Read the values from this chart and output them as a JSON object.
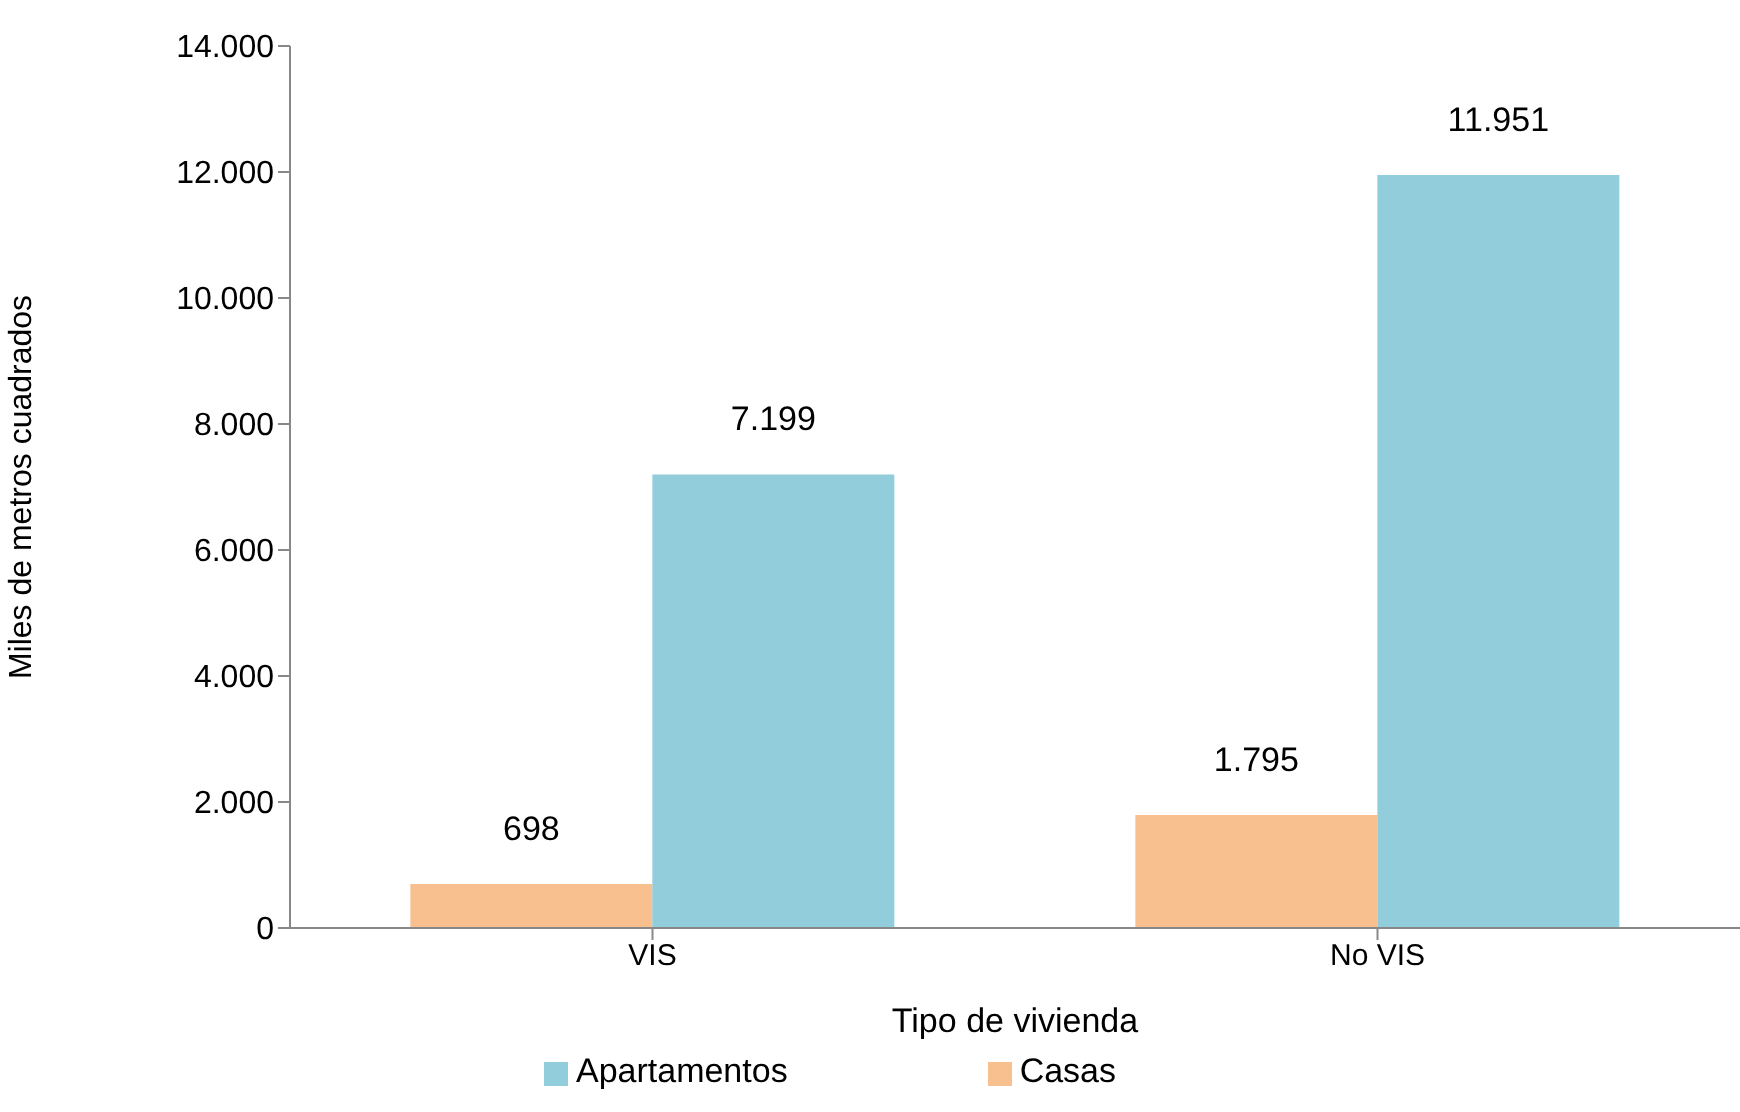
{
  "chart_data": {
    "type": "bar",
    "xlabel": "Tipo de vivienda",
    "ylabel": "Miles de metros cuadrados",
    "categories": [
      "VIS",
      "No VIS"
    ],
    "series": [
      {
        "name": "Casas",
        "color": "#f9c08f",
        "values": [
          698,
          1795
        ],
        "value_labels": [
          "698",
          "1.795"
        ]
      },
      {
        "name": "Apartamentos",
        "color": "#92cddc",
        "values": [
          7199,
          11951
        ],
        "value_labels": [
          "7.199",
          "11.951"
        ]
      }
    ],
    "ylim": [
      0,
      14000
    ],
    "yticks": [
      {
        "value": 0,
        "label": "0"
      },
      {
        "value": 2000,
        "label": "2.000"
      },
      {
        "value": 4000,
        "label": "4.000"
      },
      {
        "value": 6000,
        "label": "6.000"
      },
      {
        "value": 8000,
        "label": "8.000"
      },
      {
        "value": 10000,
        "label": "10.000"
      },
      {
        "value": 12000,
        "label": "12.000"
      },
      {
        "value": 14000,
        "label": "14.000"
      }
    ],
    "grid": false,
    "legend": "bottom"
  }
}
